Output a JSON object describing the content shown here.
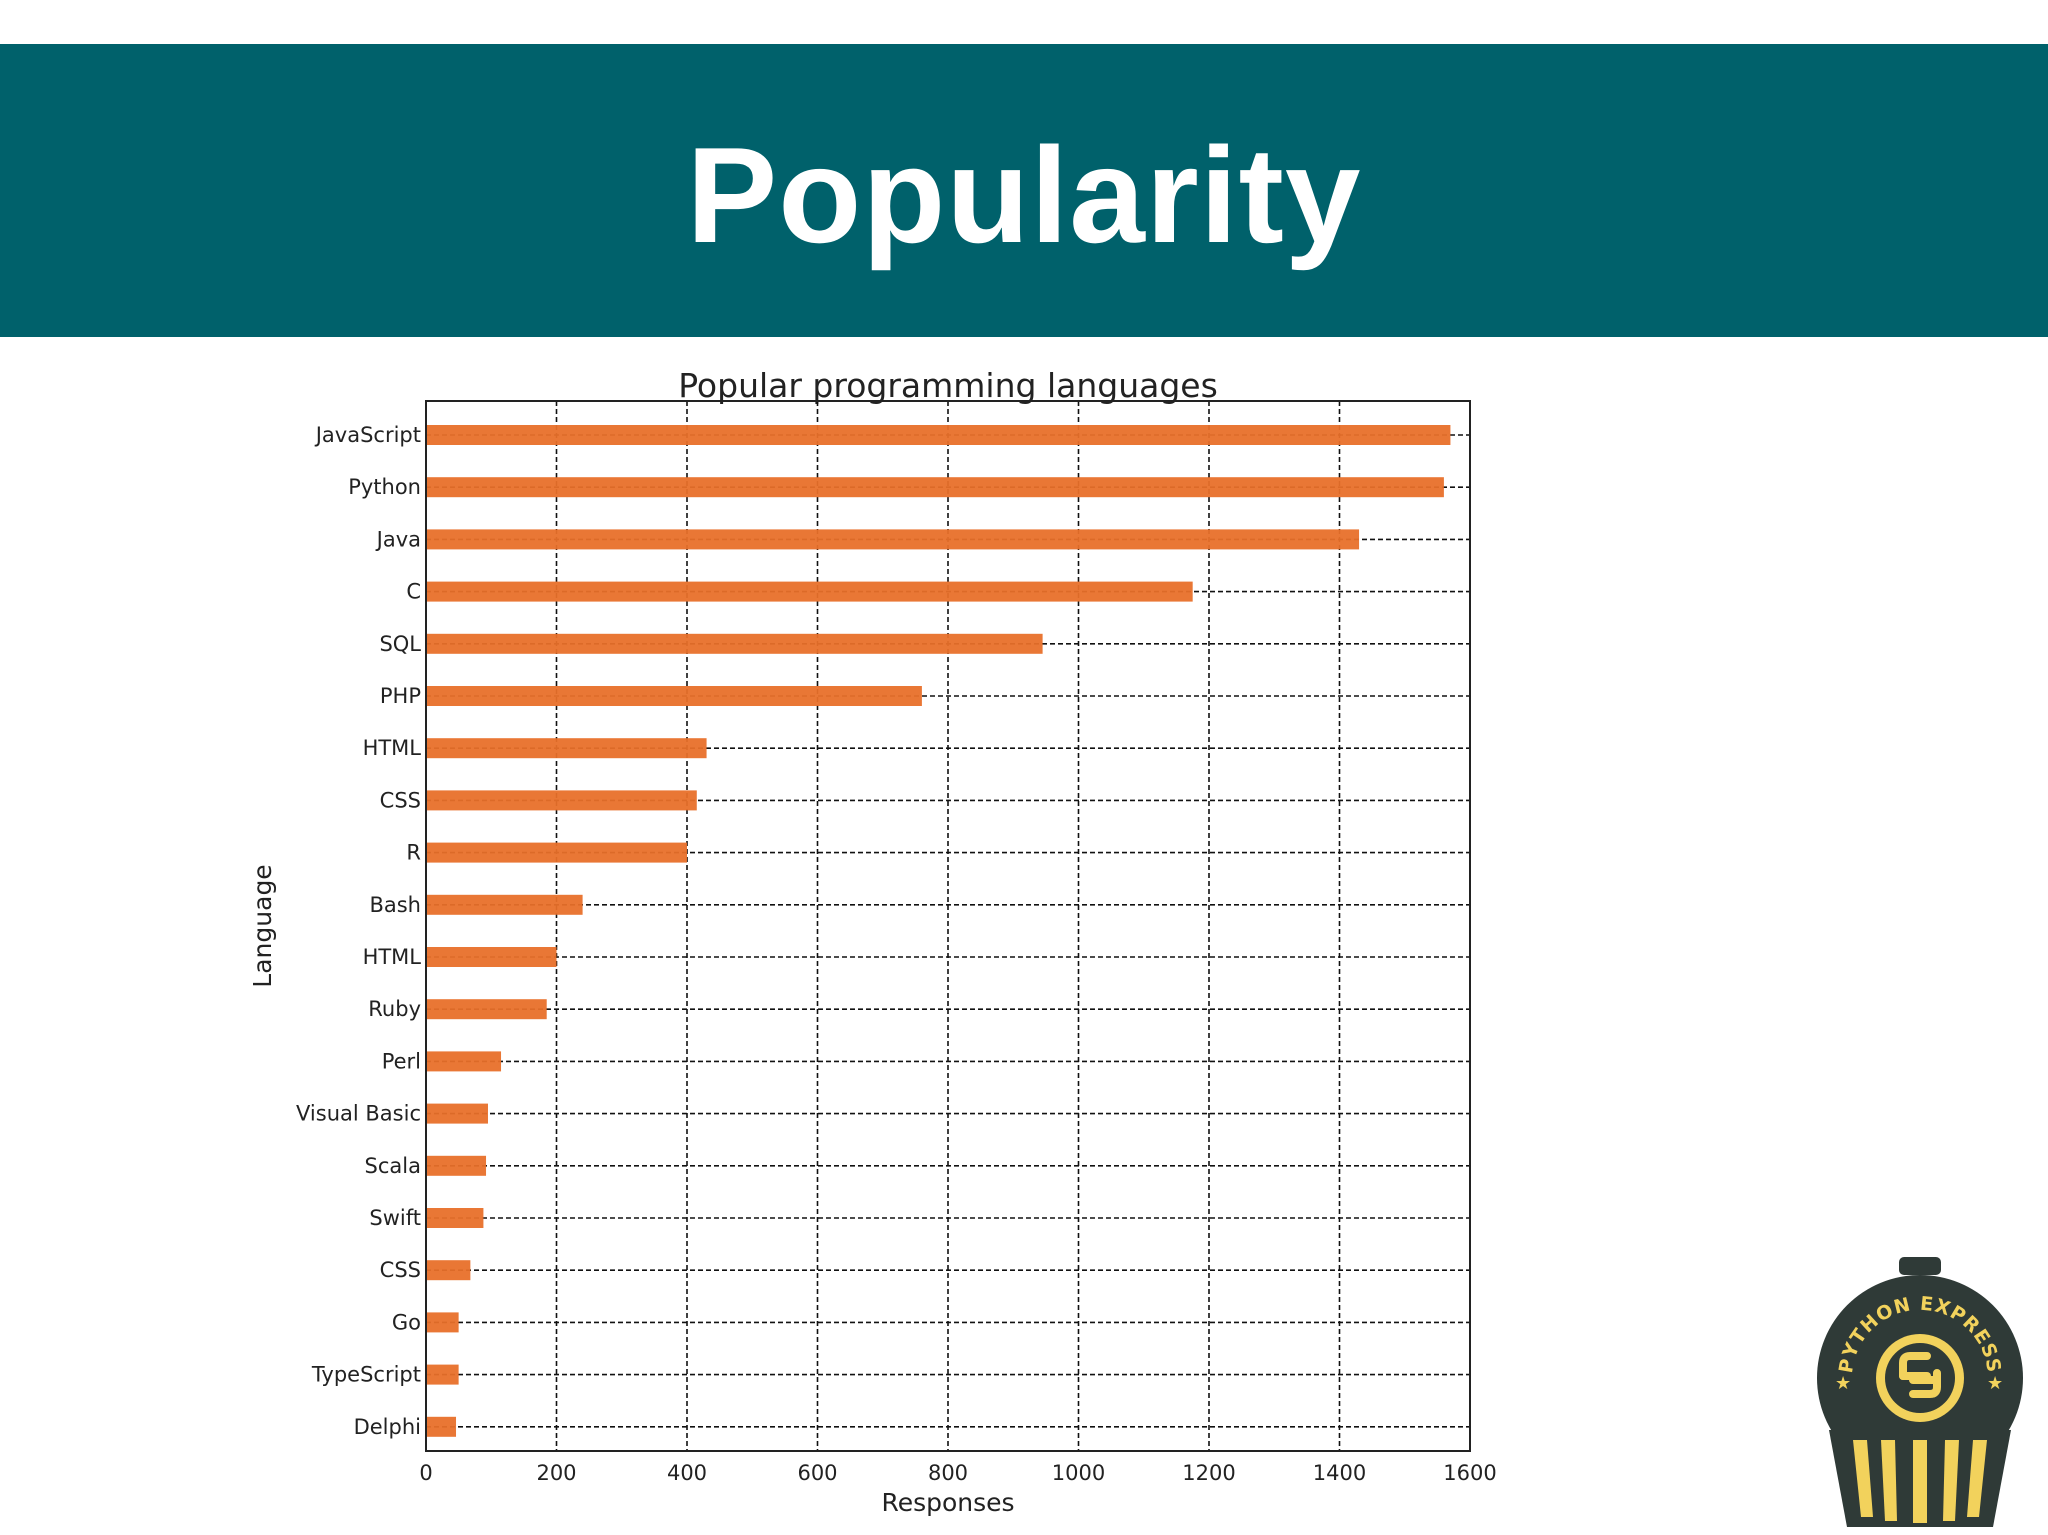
{
  "slide": {
    "title": "Popularity"
  },
  "colors": {
    "banner": "#00616b",
    "bar": "#e8702a",
    "logo_dark": "#2f3a37",
    "logo_gold": "#f2d25c"
  },
  "logo": {
    "text": "PYTHON EXPRESS"
  },
  "chart_data": {
    "type": "bar",
    "orientation": "horizontal",
    "title": "Popular programming languages",
    "xlabel": "Responses",
    "ylabel": "Language",
    "xlim": [
      0,
      1600
    ],
    "xticks": [
      0,
      200,
      400,
      600,
      800,
      1000,
      1200,
      1400,
      1600
    ],
    "grid": true,
    "categories": [
      "JavaScript",
      "Python",
      "Java",
      "C",
      "SQL",
      "PHP",
      "HTML",
      "CSS",
      "R",
      "Bash",
      "HTML",
      "Ruby",
      "Perl",
      "Visual Basic",
      "Scala",
      "Swift",
      "CSS",
      "Go",
      "TypeScript",
      "Delphi"
    ],
    "values": [
      1570,
      1560,
      1430,
      1175,
      945,
      760,
      430,
      415,
      400,
      240,
      200,
      185,
      115,
      95,
      92,
      88,
      68,
      50,
      50,
      46
    ]
  }
}
